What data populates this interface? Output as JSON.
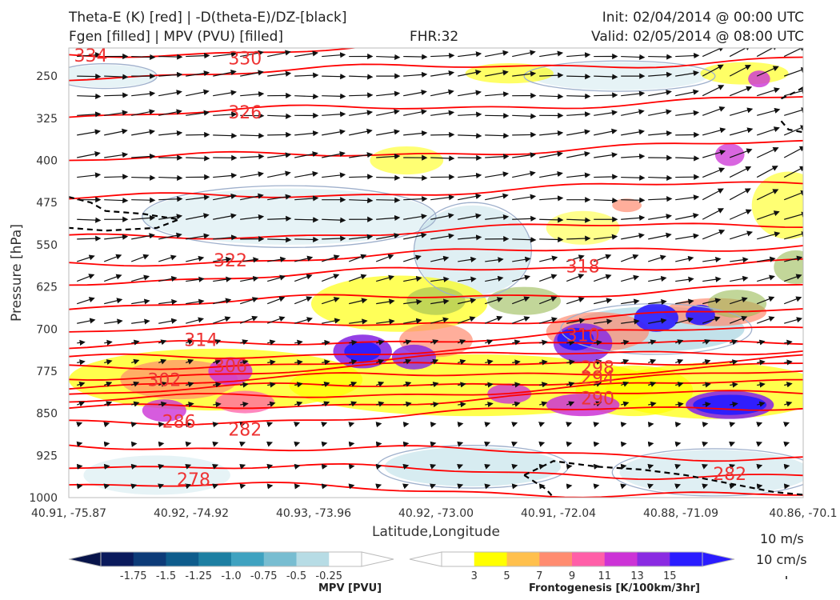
{
  "header": {
    "title_line1": "Theta-E (K) [red] | -D(theta-E)/DZ-[black]",
    "title_line2": "Fgen [filled] | MPV (PVU) [filled]",
    "fhr": "FHR:32",
    "init": "Init: 02/04/2014 @ 00:00 UTC",
    "valid": "Valid: 02/05/2014 @ 08:00 UTC"
  },
  "colors": {
    "theta_e": "#ff0000",
    "stability": "#000000",
    "mpv": [
      "#0a1a5c",
      "#0d3b78",
      "#0e5c8c",
      "#1d7fa2",
      "#3fa2c0",
      "#78bdd1",
      "#b7dce5",
      "#ffffff"
    ],
    "fgen": [
      "#ffffff",
      "#ffff00",
      "#ffc04d",
      "#ff8c70",
      "#ff5fa8",
      "#cc33d6",
      "#8a2be2",
      "#2a1cff"
    ]
  },
  "chart_data": {
    "type": "cross-section",
    "ylabel": "Pressure [hPa]",
    "xlabel": "Latitude,Longitude",
    "y_inverted": true,
    "ylim": [
      1000,
      200
    ],
    "y_ticks": [
      250,
      325,
      400,
      475,
      550,
      625,
      700,
      775,
      850,
      925,
      1000
    ],
    "x_ticks": [
      "40.91, -75.87",
      "40.92, -74.92",
      "40.93, -73.96",
      "40.92, -73.00",
      "40.91, -72.04",
      "40.88, -71.09",
      "40.86, -70.1"
    ],
    "contour_labels": [
      {
        "text": "334",
        "x": 0.03,
        "p": 213
      },
      {
        "text": "330",
        "x": 0.24,
        "p": 218
      },
      {
        "text": "326",
        "x": 0.24,
        "p": 314
      },
      {
        "text": "322",
        "x": 0.22,
        "p": 577
      },
      {
        "text": "318",
        "x": 0.7,
        "p": 588
      },
      {
        "text": "314",
        "x": 0.18,
        "p": 719
      },
      {
        "text": "310",
        "x": 0.7,
        "p": 710
      },
      {
        "text": "306",
        "x": 0.22,
        "p": 765
      },
      {
        "text": "302",
        "x": 0.13,
        "p": 790
      },
      {
        "text": "298",
        "x": 0.72,
        "p": 768
      },
      {
        "text": "294",
        "x": 0.72,
        "p": 786
      },
      {
        "text": "290",
        "x": 0.72,
        "p": 823
      },
      {
        "text": "286",
        "x": 0.15,
        "p": 864
      },
      {
        "text": "282",
        "x": 0.24,
        "p": 878
      },
      {
        "text": "278",
        "x": 0.17,
        "p": 967
      },
      {
        "text": "282",
        "x": 0.9,
        "p": 957
      }
    ],
    "mpv_colorbar": {
      "title": "MPV [PVU]",
      "ticks": [
        "-1.75",
        "-1.5",
        "-1.25",
        "-1.0",
        "-0.75",
        "-0.5",
        "-0.25"
      ]
    },
    "fgen_colorbar": {
      "title": "Frontogenesis [K/100km/3hr]",
      "ticks": [
        "3",
        "5",
        "7",
        "9",
        "11",
        "13",
        "15"
      ]
    },
    "reference_vectors": [
      "10 m/s",
      "10 cm/s"
    ]
  }
}
